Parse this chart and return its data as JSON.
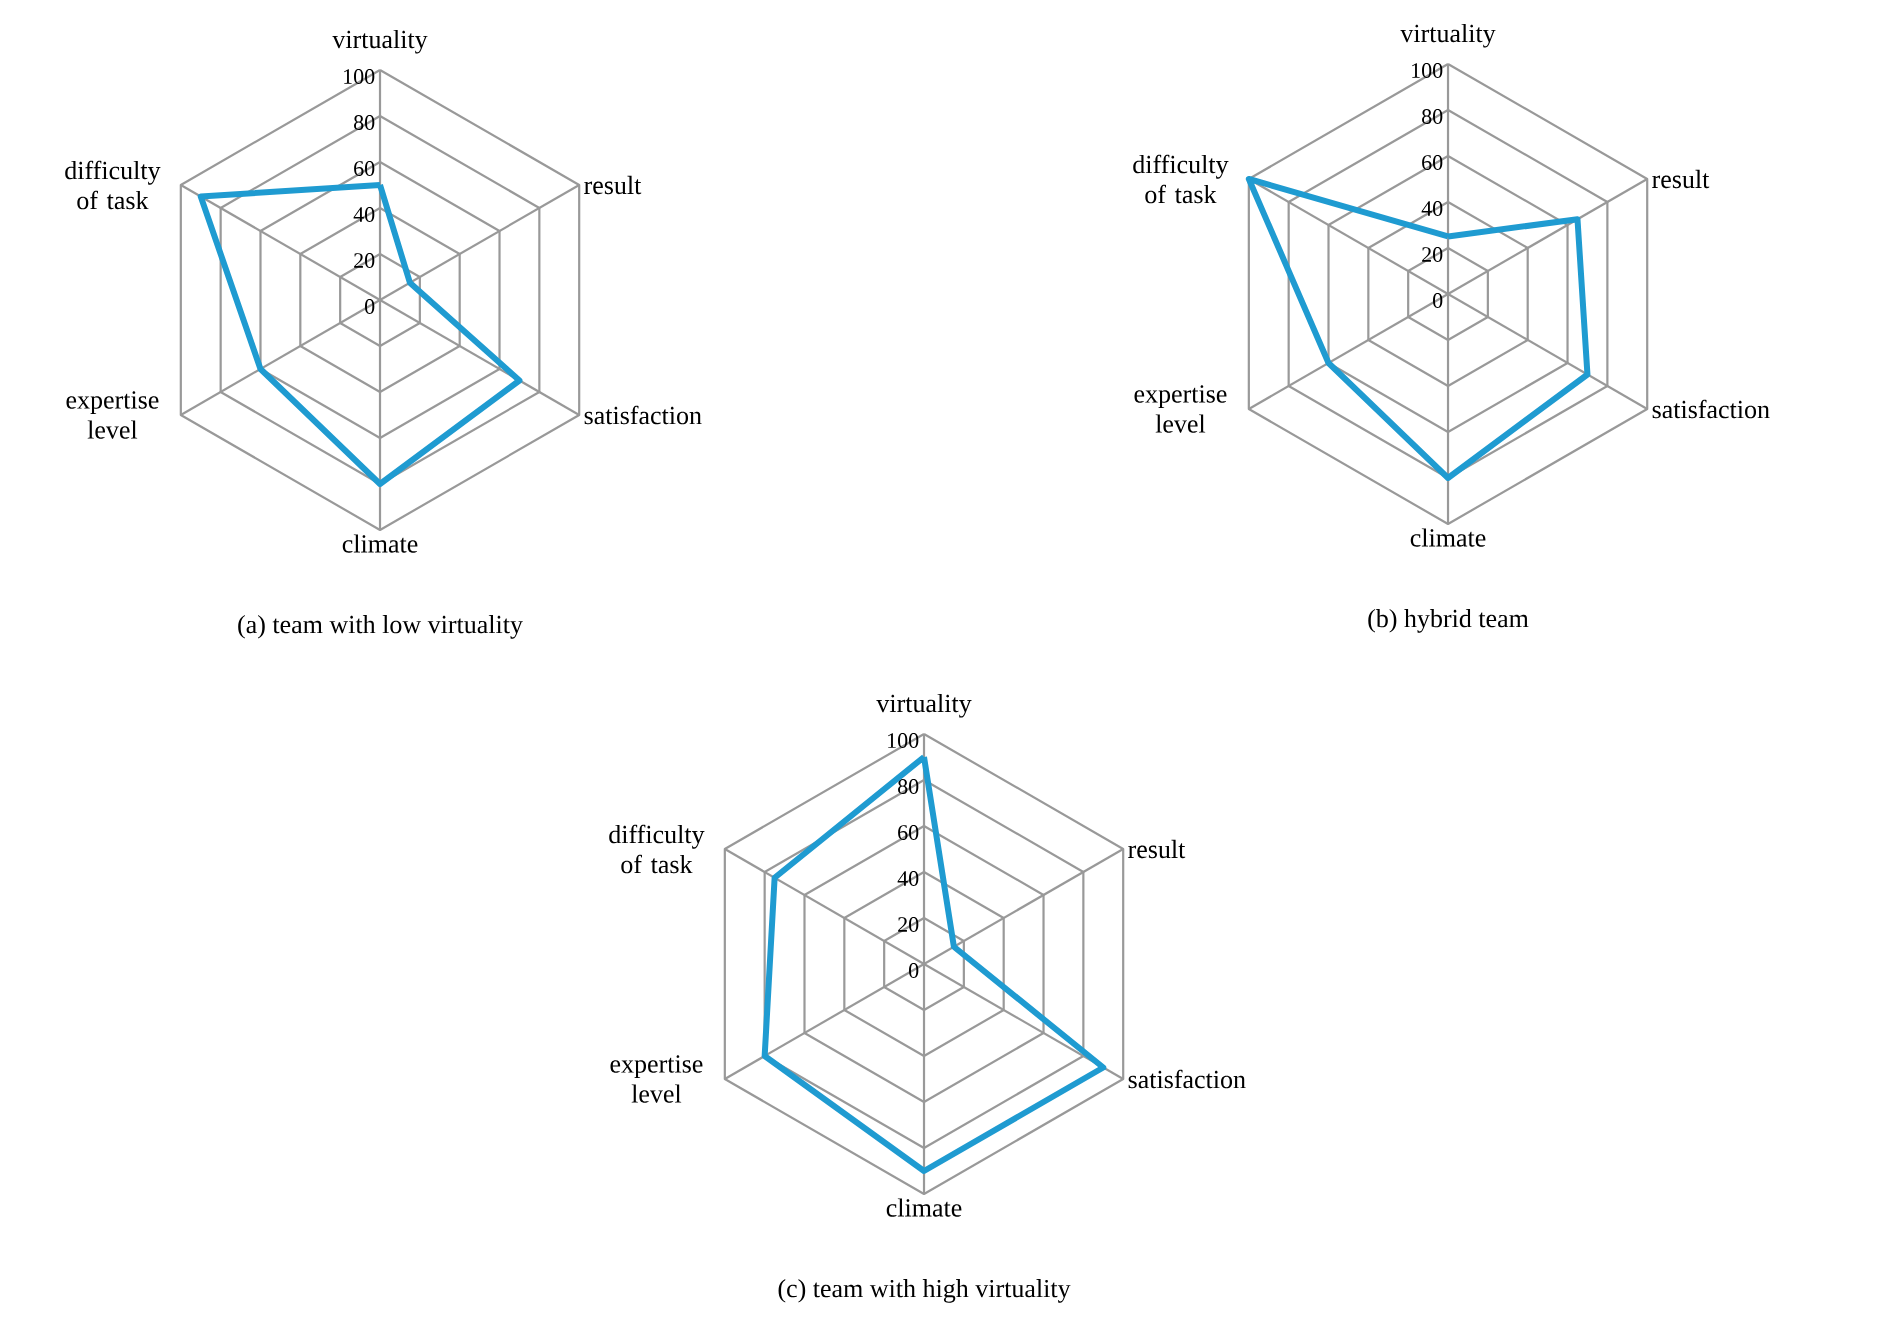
{
  "chart_data": [
    {
      "type": "radar",
      "title": "(a) team with low virtuality",
      "categories": [
        "virtuality",
        "result",
        "satisfaction",
        "climate",
        "expertise level",
        "difficulty of task"
      ],
      "series": [
        {
          "color": "#1f9bd1",
          "values": [
            50,
            15,
            70,
            80,
            60,
            90
          ]
        }
      ],
      "ylim": [
        0,
        100
      ],
      "yticks": [
        0,
        20,
        40,
        60,
        80,
        100
      ],
      "grid": true
    },
    {
      "type": "radar",
      "title": "(b) hybrid team",
      "categories": [
        "virtuality",
        "result",
        "satisfaction",
        "climate",
        "expertise level",
        "difficulty of task"
      ],
      "series": [
        {
          "color": "#1f9bd1",
          "values": [
            25,
            65,
            70,
            80,
            60,
            100
          ]
        }
      ],
      "ylim": [
        0,
        100
      ],
      "yticks": [
        0,
        20,
        40,
        60,
        80,
        100
      ],
      "grid": true
    },
    {
      "type": "radar",
      "title": "(c) team with high virtuality",
      "categories": [
        "virtuality",
        "result",
        "satisfaction",
        "climate",
        "expertise level",
        "difficulty of task"
      ],
      "series": [
        {
          "color": "#1f9bd1",
          "values": [
            90,
            15,
            90,
            90,
            80,
            75
          ]
        }
      ],
      "ylim": [
        0,
        100
      ],
      "yticks": [
        0,
        20,
        40,
        60,
        80,
        100
      ],
      "grid": true
    }
  ]
}
